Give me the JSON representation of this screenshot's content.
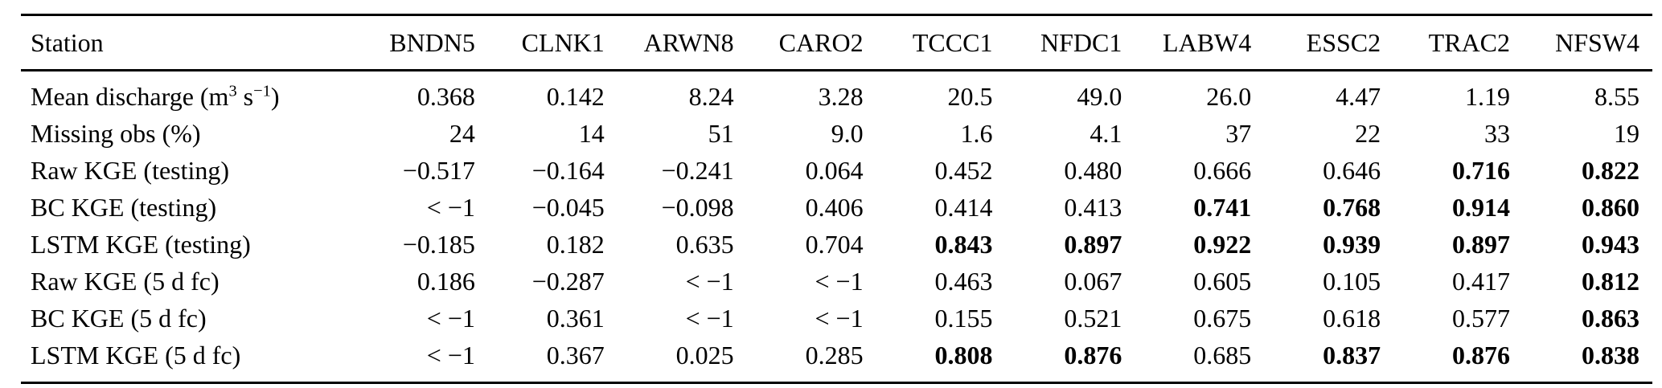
{
  "table": {
    "columns": [
      "Station",
      "BNDN5",
      "CLNK1",
      "ARWN8",
      "CARO2",
      "TCCC1",
      "NFDC1",
      "LABW4",
      "ESSC2",
      "TRAC2",
      "NFSW4"
    ],
    "rows": [
      {
        "label": "Mean discharge (m^{3} s^{−1})",
        "values": [
          "0.368",
          "0.142",
          "8.24",
          "3.28",
          "20.5",
          "49.0",
          "26.0",
          "4.47",
          "1.19",
          "8.55"
        ],
        "bold": []
      },
      {
        "label": "Missing obs (%)",
        "values": [
          "24",
          "14",
          "51",
          "9.0",
          "1.6",
          "4.1",
          "37",
          "22",
          "33",
          "19"
        ],
        "bold": []
      },
      {
        "label": "Raw KGE (testing)",
        "values": [
          "−0.517",
          "−0.164",
          "−0.241",
          "0.064",
          "0.452",
          "0.480",
          "0.666",
          "0.646",
          "0.716",
          "0.822"
        ],
        "bold": [
          8,
          9
        ]
      },
      {
        "label": "BC KGE (testing)",
        "values": [
          "< −1",
          "−0.045",
          "−0.098",
          "0.406",
          "0.414",
          "0.413",
          "0.741",
          "0.768",
          "0.914",
          "0.860"
        ],
        "bold": [
          6,
          7,
          8,
          9
        ]
      },
      {
        "label": "LSTM KGE (testing)",
        "values": [
          "−0.185",
          "0.182",
          "0.635",
          "0.704",
          "0.843",
          "0.897",
          "0.922",
          "0.939",
          "0.897",
          "0.943"
        ],
        "bold": [
          4,
          5,
          6,
          7,
          8,
          9
        ]
      },
      {
        "label": "Raw KGE (5 d fc)",
        "values": [
          "0.186",
          "−0.287",
          "< −1",
          "< −1",
          "0.463",
          "0.067",
          "0.605",
          "0.105",
          "0.417",
          "0.812"
        ],
        "bold": [
          9
        ]
      },
      {
        "label": "BC KGE (5 d fc)",
        "values": [
          "< −1",
          "0.361",
          "< −1",
          "< −1",
          "0.155",
          "0.521",
          "0.675",
          "0.618",
          "0.577",
          "0.863"
        ],
        "bold": [
          9
        ]
      },
      {
        "label": "LSTM KGE (5 d fc)",
        "values": [
          "< −1",
          "0.367",
          "0.025",
          "0.285",
          "0.808",
          "0.876",
          "0.685",
          "0.837",
          "0.876",
          "0.838"
        ],
        "bold": [
          4,
          5,
          7,
          8,
          9
        ]
      }
    ]
  }
}
